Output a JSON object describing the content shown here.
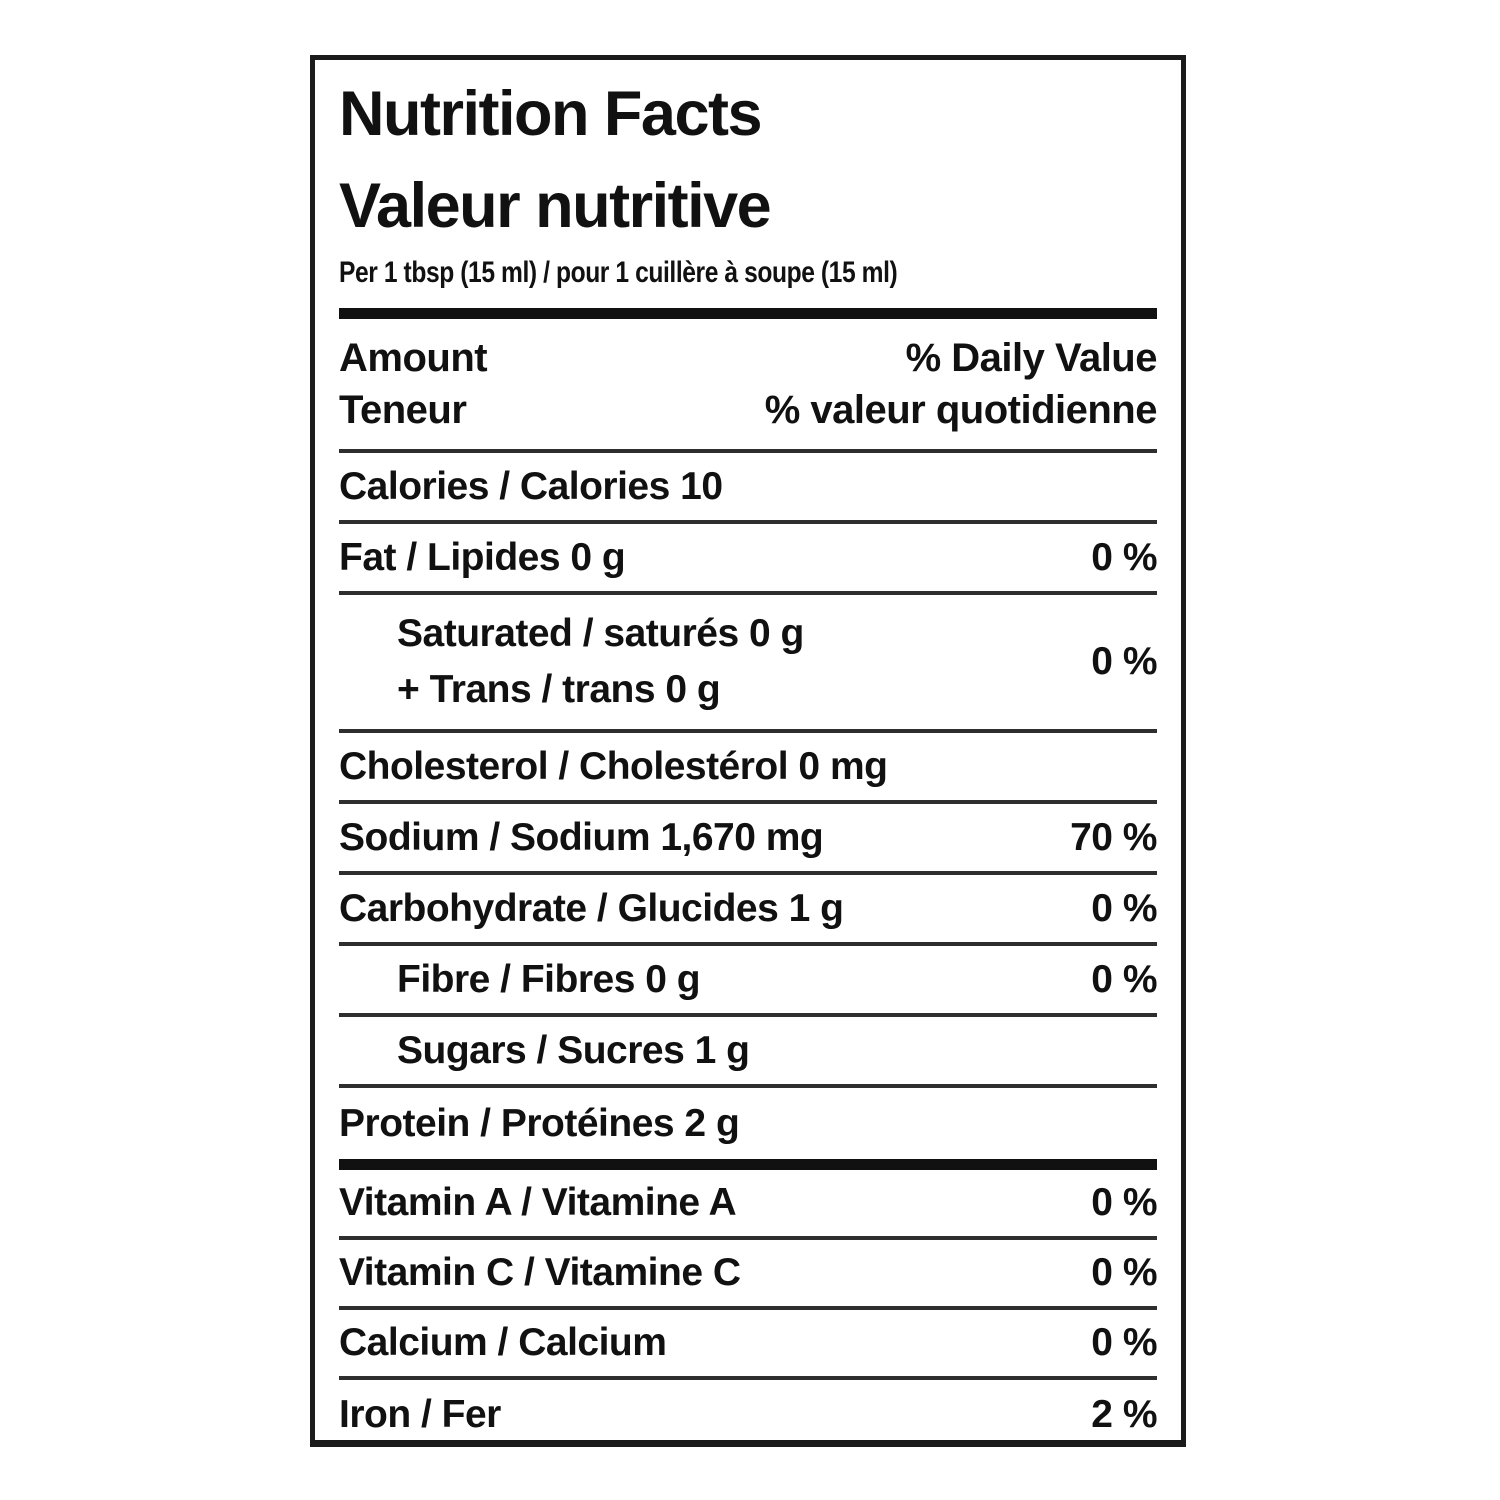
{
  "label": {
    "title_en": "Nutrition Facts",
    "title_fr": "Valeur nutritive",
    "serving": "Per 1 tbsp (15 ml) / pour 1 cuillère à soupe (15 ml)",
    "header": {
      "amount_en": "Amount",
      "amount_fr": "Teneur",
      "daily_value_en": "% Daily Value",
      "daily_value_fr": "% valeur quotidienne"
    },
    "rows": [
      {
        "name": "calories",
        "text": "Calories / Calories 10",
        "value": "",
        "indent": false
      },
      {
        "name": "fat",
        "text": "Fat / Lipides 0 g",
        "value": "0 %",
        "indent": false
      },
      {
        "name": "saturated-trans",
        "text": "Saturated / saturés 0 g",
        "line2": "+ Trans / trans 0 g",
        "value": "0 %",
        "indent": true
      },
      {
        "name": "cholesterol",
        "text": "Cholesterol / Cholestérol 0 mg",
        "value": "",
        "indent": false
      },
      {
        "name": "sodium",
        "text": "Sodium / Sodium 1,670 mg",
        "value": "70 %",
        "indent": false
      },
      {
        "name": "carbohydrate",
        "text": "Carbohydrate / Glucides 1 g",
        "value": "0 %",
        "indent": false
      },
      {
        "name": "fibre",
        "text": "Fibre / Fibres 0 g",
        "value": "0 %",
        "indent": true
      },
      {
        "name": "sugars",
        "text": "Sugars / Sucres 1 g",
        "value": "",
        "indent": true
      },
      {
        "name": "protein",
        "text": "Protein / Protéines 2 g",
        "value": "",
        "indent": false
      }
    ],
    "micronutrients": [
      {
        "name": "vitamin-a",
        "text": "Vitamin A / Vitamine A",
        "value": "0 %"
      },
      {
        "name": "vitamin-c",
        "text": "Vitamin C / Vitamine C",
        "value": "0 %"
      },
      {
        "name": "calcium",
        "text": "Calcium / Calcium",
        "value": "0 %"
      },
      {
        "name": "iron",
        "text": "Iron / Fer",
        "value": "2 %"
      }
    ],
    "colors": {
      "text": "#111111",
      "rule": "#2e2e2e",
      "background": "#ffffff"
    }
  }
}
